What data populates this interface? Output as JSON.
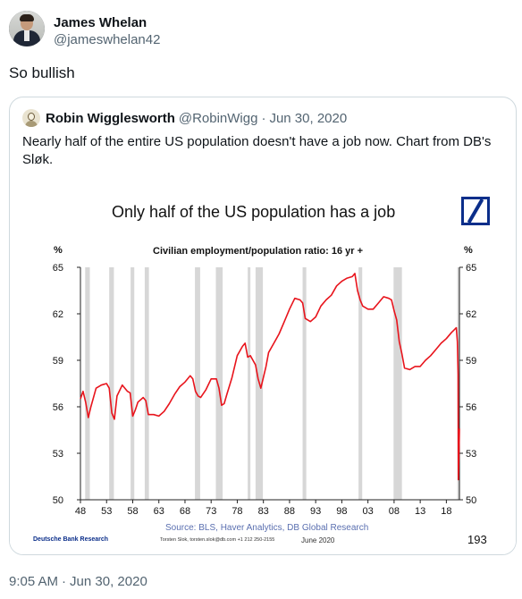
{
  "author": {
    "display_name": "James Whelan",
    "handle": "@jameswhelan42"
  },
  "tweet": {
    "text": "So bullish"
  },
  "quoted": {
    "display_name": "Robin Wigglesworth",
    "handle": "@RobinWigg",
    "separator": "·",
    "date": "Jun 30, 2020",
    "text": "Nearly half of the entire US population doesn't have a job now. Chart from DB's Sløk."
  },
  "chart_data": {
    "type": "line",
    "title": "Only half of the US population has a job",
    "subtitle": "Civilian employment/population ratio: 16 yr +",
    "ylabel_left": "%",
    "ylabel_right": "%",
    "ylim": [
      50,
      65
    ],
    "yticks": [
      "65",
      "62",
      "59",
      "56",
      "53",
      "50"
    ],
    "xlim": [
      1948,
      2020.5
    ],
    "xticks": [
      "48",
      "53",
      "58",
      "63",
      "68",
      "73",
      "78",
      "83",
      "88",
      "93",
      "98",
      "03",
      "08",
      "13",
      "18"
    ],
    "recessions": [
      [
        1948.9,
        1949.8
      ],
      [
        1953.5,
        1954.4
      ],
      [
        1957.6,
        1958.3
      ],
      [
        1960.3,
        1961.1
      ],
      [
        1969.9,
        1970.9
      ],
      [
        1973.9,
        1975.2
      ],
      [
        1980.0,
        1980.5
      ],
      [
        1981.5,
        1982.9
      ],
      [
        1990.5,
        1991.2
      ],
      [
        2001.2,
        2001.9
      ],
      [
        2007.9,
        2009.5
      ],
      [
        2020.1,
        2020.5
      ]
    ],
    "series": [
      {
        "color": "#e8141c",
        "x": [
          1948,
          1948.5,
          1949,
          1949.5,
          1950,
          1951,
          1952,
          1953,
          1953.5,
          1954,
          1954.5,
          1955,
          1956,
          1957,
          1957.5,
          1958,
          1958.5,
          1959,
          1960,
          1960.5,
          1961,
          1961.5,
          1962,
          1963,
          1964,
          1965,
          1966,
          1967,
          1968,
          1969,
          1969.5,
          1970,
          1970.5,
          1971,
          1972,
          1973,
          1974,
          1974.5,
          1975,
          1975.5,
          1976,
          1977,
          1978,
          1979,
          1979.5,
          1980,
          1980.5,
          1981,
          1981.5,
          1982,
          1982.5,
          1983,
          1983.5,
          1984,
          1985,
          1986,
          1987,
          1988,
          1989,
          1990,
          1990.5,
          1991,
          1992,
          1993,
          1994,
          1995,
          1996,
          1997,
          1998,
          1999,
          2000,
          2000.5,
          2001,
          2001.5,
          2002,
          2003,
          2004,
          2005,
          2006,
          2007,
          2007.5,
          2008,
          2008.5,
          2009,
          2009.5,
          2010,
          2011,
          2012,
          2013,
          2014,
          2015,
          2016,
          2017,
          2018,
          2019,
          2019.9,
          2020.1,
          2020.25,
          2020.3,
          2020.4,
          2020.5
        ],
        "values": [
          56.5,
          57.0,
          56.3,
          55.3,
          56.0,
          57.2,
          57.4,
          57.5,
          57.2,
          55.6,
          55.2,
          56.7,
          57.4,
          57.0,
          56.9,
          55.4,
          55.8,
          56.3,
          56.6,
          56.4,
          55.5,
          55.5,
          55.5,
          55.4,
          55.7,
          56.2,
          56.8,
          57.3,
          57.6,
          58.0,
          57.8,
          57.0,
          56.7,
          56.6,
          57.1,
          57.8,
          57.8,
          57.2,
          56.1,
          56.2,
          56.8,
          57.9,
          59.3,
          59.9,
          60.1,
          59.2,
          59.3,
          59.0,
          58.7,
          57.8,
          57.2,
          57.9,
          58.6,
          59.5,
          60.1,
          60.7,
          61.5,
          62.3,
          63.0,
          62.9,
          62.7,
          61.7,
          61.5,
          61.8,
          62.5,
          62.9,
          63.2,
          63.8,
          64.1,
          64.3,
          64.4,
          64.6,
          63.5,
          62.9,
          62.5,
          62.3,
          62.3,
          62.7,
          63.1,
          63.0,
          62.9,
          62.2,
          61.6,
          60.2,
          59.4,
          58.5,
          58.4,
          58.6,
          58.6,
          59.0,
          59.3,
          59.7,
          60.1,
          60.4,
          60.8,
          61.1,
          60.2,
          58.1,
          51.3,
          52.8,
          54.6
        ]
      }
    ]
  },
  "chart_text": {
    "source": "Source: BLS, Haver Analytics, DB Global Research",
    "footer_left": "Deutsche Bank Research",
    "footer_mid": "Torsten Slok, torsten.slok@db.com  +1 212 250-2155",
    "footer_date": "June 2020",
    "page_number": "193"
  },
  "timestamp": {
    "time": "9:05 AM",
    "separator": "·",
    "date": "Jun 30, 2020"
  }
}
